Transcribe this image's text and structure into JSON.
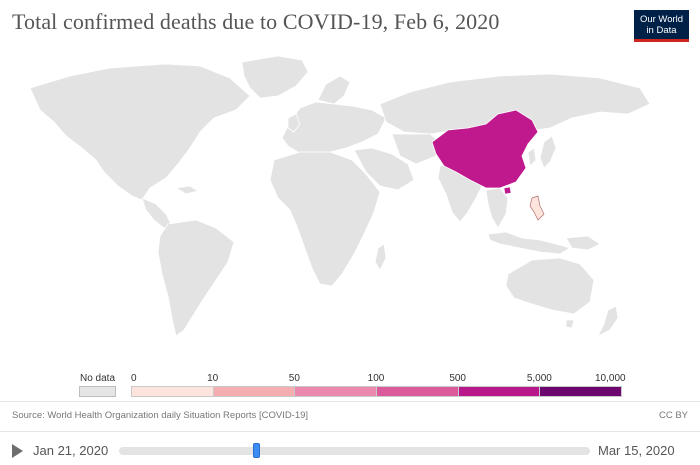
{
  "title": "Total confirmed deaths due to COVID-19, Feb 6, 2020",
  "logo": {
    "line1": "Our World",
    "line2": "in Data"
  },
  "legend": {
    "no_data_label": "No data",
    "ticks": [
      "0",
      "10",
      "50",
      "100",
      "500",
      "5,000",
      "10,000"
    ],
    "colors": [
      "#fde4dc",
      "#f5aeb0",
      "#eb88ad",
      "#db5a9b",
      "#b8188a",
      "#6d0770"
    ],
    "no_data_color": "#e5e5e5"
  },
  "map": {
    "highlighted_country": "China",
    "highlight_color": "#c0198d",
    "low_value_country": "Philippines",
    "low_value_color": "#fde4dc",
    "land_color": "#e3e3e3",
    "border_color": "#ffffff"
  },
  "footer": {
    "source": "Source: World Health Organization daily Situation Reports [COVID-19]",
    "license": "CC BY"
  },
  "timeline": {
    "start": "Jan 21, 2020",
    "end": "Mar 15, 2020",
    "position": 0.29
  }
}
